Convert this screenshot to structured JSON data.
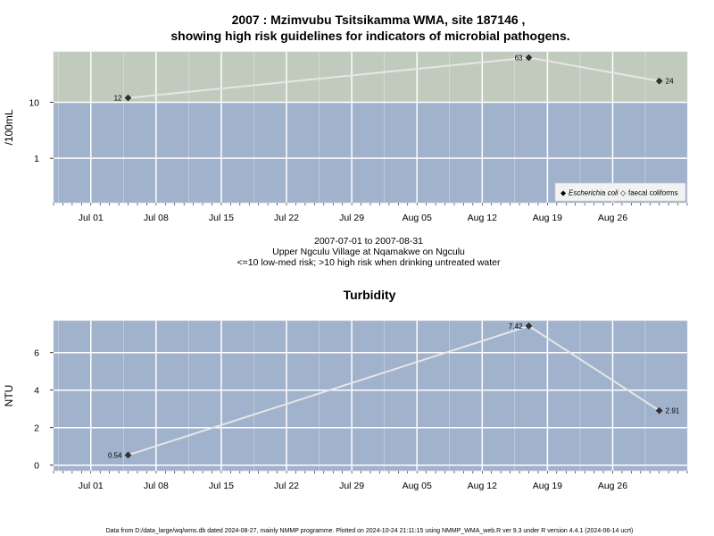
{
  "title_line1": "2007 : Mzimvubu Tsitsikamma WMA, site 187146 ,",
  "title_line2": "showing high risk guidelines for indicators of microbial pathogens.",
  "subtitle_lines": [
    "2007-07-01 to 2007-08-31",
    "Upper Ngculu Village at Nqamakwe on Ngculu",
    "<=10 low-med risk; >10 high risk when drinking untreated water"
  ],
  "footer": "Data from D:/data_large/wq/wms.db dated 2024-08-27, mainly NMMP programme. Plotted on 2024-10-24 21:11:15 using NMMP_WMA_web.R ver 9.3 under R version 4.4.1 (2024-06-14 ucrt)",
  "colors": {
    "low_risk": "#a1b2cc",
    "high_risk": "#c0cbbd",
    "grid": "#ffffff",
    "line": "#e6e6e6",
    "point": "#333333"
  },
  "chart_data": [
    {
      "type": "line",
      "title": "",
      "ylabel": "/100mL",
      "y_scale": "log",
      "x_range": [
        "2007-06-27",
        "2007-09-03"
      ],
      "y_range": [
        0.16,
        80
      ],
      "x_tick_labels": [
        "Jul 01",
        "Jul 08",
        "Jul 15",
        "Jul 22",
        "Jul 29",
        "Aug 05",
        "Aug 12",
        "Aug 19",
        "Aug 26"
      ],
      "x_tick_dates": [
        "2007-07-01",
        "2007-07-08",
        "2007-07-15",
        "2007-07-22",
        "2007-07-29",
        "2007-08-05",
        "2007-08-12",
        "2007-08-19",
        "2007-08-26"
      ],
      "y_ticks": [
        1,
        10
      ],
      "y_tick_labels": [
        "1",
        "10"
      ],
      "threshold": 10,
      "grid": true,
      "legend_position": "bottom-right",
      "legend": [
        {
          "symbol": "◆",
          "label": "Escherichia coli",
          "italic": true
        },
        {
          "symbol": "◇",
          "label": "faecal coliforms",
          "italic": false
        }
      ],
      "series": [
        {
          "name": "Escherichia coli",
          "points": [
            {
              "x": "2007-07-05",
              "y": 12,
              "label": "12",
              "side": "left"
            },
            {
              "x": "2007-08-17",
              "y": 63,
              "label": "63",
              "side": "left"
            },
            {
              "x": "2007-08-31",
              "y": 24,
              "label": "24",
              "side": "right"
            }
          ]
        }
      ]
    },
    {
      "type": "line",
      "title": "Turbidity",
      "ylabel": "NTU",
      "y_scale": "linear",
      "x_range": [
        "2007-06-27",
        "2007-09-03"
      ],
      "y_range": [
        -0.3,
        7.7
      ],
      "x_tick_labels": [
        "Jul 01",
        "Jul 08",
        "Jul 15",
        "Jul 22",
        "Jul 29",
        "Aug 05",
        "Aug 12",
        "Aug 19",
        "Aug 26"
      ],
      "x_tick_dates": [
        "2007-07-01",
        "2007-07-08",
        "2007-07-15",
        "2007-07-22",
        "2007-07-29",
        "2007-08-05",
        "2007-08-12",
        "2007-08-19",
        "2007-08-26"
      ],
      "y_ticks": [
        0,
        2,
        4,
        6
      ],
      "y_tick_labels": [
        "0",
        "2",
        "4",
        "6"
      ],
      "grid": true,
      "series": [
        {
          "name": "",
          "points": [
            {
              "x": "2007-07-05",
              "y": 0.54,
              "label": "0.54",
              "side": "left"
            },
            {
              "x": "2007-08-17",
              "y": 7.42,
              "label": "7.42",
              "side": "left"
            },
            {
              "x": "2007-08-31",
              "y": 2.91,
              "label": "2.91",
              "side": "right"
            }
          ]
        }
      ]
    }
  ]
}
